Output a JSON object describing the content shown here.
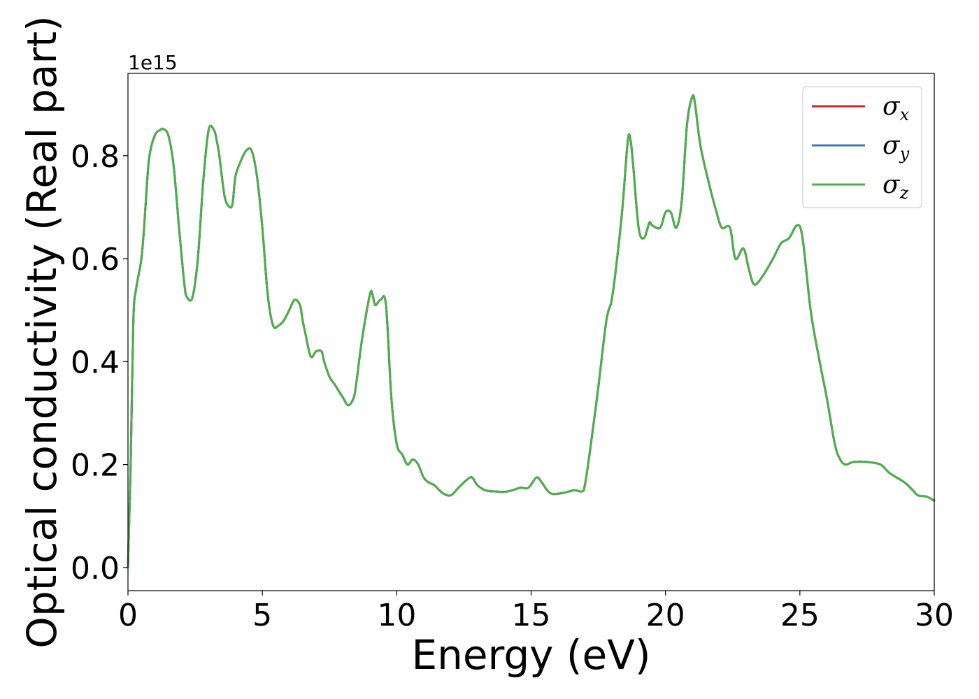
{
  "chart_data": {
    "type": "line",
    "xlabel": "Energy (eV)",
    "ylabel": "Optical conductivity (Real part)",
    "y_offset_label": "1e15",
    "xlim": [
      0,
      30
    ],
    "ylim": [
      -0.045,
      0.96
    ],
    "x_ticks": [
      0,
      5,
      10,
      15,
      20,
      25,
      30
    ],
    "x_tick_labels": [
      "0",
      "5",
      "10",
      "15",
      "20",
      "25",
      "30"
    ],
    "y_ticks": [
      0.0,
      0.2,
      0.4,
      0.6,
      0.8
    ],
    "y_tick_labels": [
      "0.0",
      "0.2",
      "0.4",
      "0.6",
      "0.8"
    ],
    "grid": false,
    "legend_position": "top-right",
    "legend": [
      {
        "symbol": "σ",
        "subscript": "x",
        "color": "#d62728"
      },
      {
        "symbol": "σ",
        "subscript": "y",
        "color": "#3b78b0"
      },
      {
        "symbol": "σ",
        "subscript": "z",
        "color": "#4daf4a"
      }
    ],
    "x": [
      0,
      0.1,
      0.2,
      0.3,
      0.4,
      0.5,
      0.6,
      0.7,
      0.8,
      1.0,
      1.2,
      1.3,
      1.5,
      1.7,
      1.9,
      2.1,
      2.2,
      2.4,
      2.6,
      2.8,
      3.0,
      3.2,
      3.3,
      3.4,
      3.6,
      3.8,
      3.9,
      4.0,
      4.2,
      4.4,
      4.6,
      4.8,
      5.0,
      5.2,
      5.4,
      5.6,
      5.8,
      6.0,
      6.2,
      6.4,
      6.5,
      6.6,
      6.8,
      7.0,
      7.2,
      7.3,
      7.5,
      7.7,
      8.0,
      8.2,
      8.4,
      8.5,
      8.7,
      9.0,
      9.1,
      9.2,
      9.4,
      9.6,
      9.8,
      10.0,
      10.2,
      10.4,
      10.6,
      10.8,
      11.0,
      11.2,
      11.4,
      11.7,
      12.0,
      12.3,
      12.6,
      12.8,
      13.0,
      13.3,
      13.6,
      14.0,
      14.3,
      14.6,
      14.9,
      15.2,
      15.4,
      15.6,
      15.8,
      16.2,
      16.6,
      16.9,
      17.0,
      17.2,
      17.5,
      17.8,
      18.0,
      18.2,
      18.4,
      18.6,
      18.7,
      18.8,
      19.0,
      19.2,
      19.4,
      19.5,
      19.8,
      20.0,
      20.2,
      20.4,
      20.6,
      20.8,
      21.0,
      21.1,
      21.3,
      21.6,
      21.9,
      22.1,
      22.4,
      22.6,
      22.9,
      23.1,
      23.3,
      23.6,
      24.0,
      24.3,
      24.6,
      24.9,
      25.1,
      25.4,
      25.7,
      26.0,
      26.3,
      26.5,
      26.7,
      27.0,
      27.5,
      28.0,
      28.3,
      28.5,
      28.9,
      29.2,
      29.4,
      29.7,
      30.0
    ],
    "series": [
      {
        "name": "σx",
        "color": "#d62728",
        "width": 3
      },
      {
        "name": "σy",
        "color": "#3b78b0",
        "width": 3
      },
      {
        "name": "σz",
        "color": "#4daf4a",
        "width": 3
      }
    ],
    "values": [
      0.0,
      0.2,
      0.48,
      0.54,
      0.57,
      0.6,
      0.66,
      0.74,
      0.8,
      0.84,
      0.85,
      0.852,
      0.84,
      0.78,
      0.66,
      0.55,
      0.525,
      0.525,
      0.6,
      0.75,
      0.85,
      0.85,
      0.83,
      0.8,
      0.72,
      0.7,
      0.71,
      0.76,
      0.79,
      0.81,
      0.81,
      0.76,
      0.66,
      0.53,
      0.47,
      0.47,
      0.48,
      0.5,
      0.52,
      0.51,
      0.48,
      0.455,
      0.41,
      0.42,
      0.42,
      0.4,
      0.37,
      0.355,
      0.33,
      0.315,
      0.33,
      0.36,
      0.44,
      0.53,
      0.53,
      0.51,
      0.52,
      0.51,
      0.33,
      0.24,
      0.22,
      0.2,
      0.21,
      0.2,
      0.175,
      0.165,
      0.16,
      0.145,
      0.14,
      0.155,
      0.17,
      0.175,
      0.16,
      0.15,
      0.148,
      0.147,
      0.15,
      0.155,
      0.155,
      0.175,
      0.165,
      0.15,
      0.143,
      0.145,
      0.15,
      0.148,
      0.16,
      0.23,
      0.35,
      0.48,
      0.52,
      0.6,
      0.7,
      0.83,
      0.83,
      0.78,
      0.66,
      0.64,
      0.67,
      0.665,
      0.66,
      0.69,
      0.69,
      0.66,
      0.71,
      0.86,
      0.915,
      0.9,
      0.82,
      0.75,
      0.69,
      0.66,
      0.66,
      0.6,
      0.62,
      0.58,
      0.55,
      0.565,
      0.6,
      0.63,
      0.64,
      0.665,
      0.64,
      0.5,
      0.41,
      0.33,
      0.24,
      0.21,
      0.2,
      0.205,
      0.205,
      0.2,
      0.185,
      0.178,
      0.165,
      0.15,
      0.14,
      0.138,
      0.13
    ]
  }
}
